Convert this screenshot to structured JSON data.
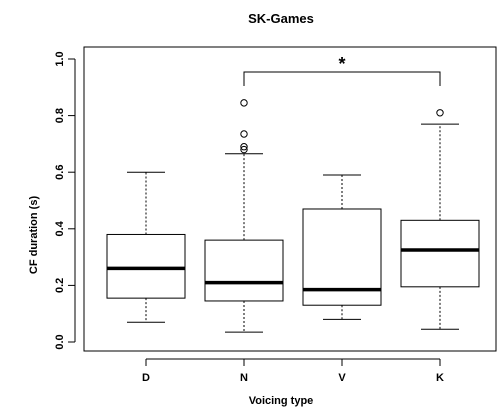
{
  "chart_data": {
    "type": "box",
    "title": "SK-Games",
    "xlabel": "Voicing type",
    "ylabel": "CF duration (s)",
    "ylim": [
      -0.03,
      1.05
    ],
    "yticks": [
      "0.0",
      "0.2",
      "0.4",
      "0.6",
      "0.8",
      "1.0"
    ],
    "categories": [
      "D",
      "N",
      "V",
      "K"
    ],
    "boxes": [
      {
        "category": "D",
        "min": 0.07,
        "q1": 0.155,
        "median": 0.26,
        "q3": 0.38,
        "max": 0.6,
        "outliers": []
      },
      {
        "category": "N",
        "min": 0.035,
        "q1": 0.145,
        "median": 0.21,
        "q3": 0.36,
        "max": 0.665,
        "outliers": [
          0.68,
          0.69,
          0.735,
          0.845
        ]
      },
      {
        "category": "V",
        "min": 0.08,
        "q1": 0.13,
        "median": 0.185,
        "q3": 0.47,
        "max": 0.59,
        "outliers": []
      },
      {
        "category": "K",
        "min": 0.045,
        "q1": 0.195,
        "median": 0.325,
        "q3": 0.43,
        "max": 0.77,
        "outliers": [
          0.81
        ]
      }
    ],
    "significance": {
      "from": "N",
      "to": "K",
      "label": "*"
    },
    "colors": {
      "box_fill": "#ffffff",
      "stroke": "#000000",
      "median": "#000000"
    }
  }
}
